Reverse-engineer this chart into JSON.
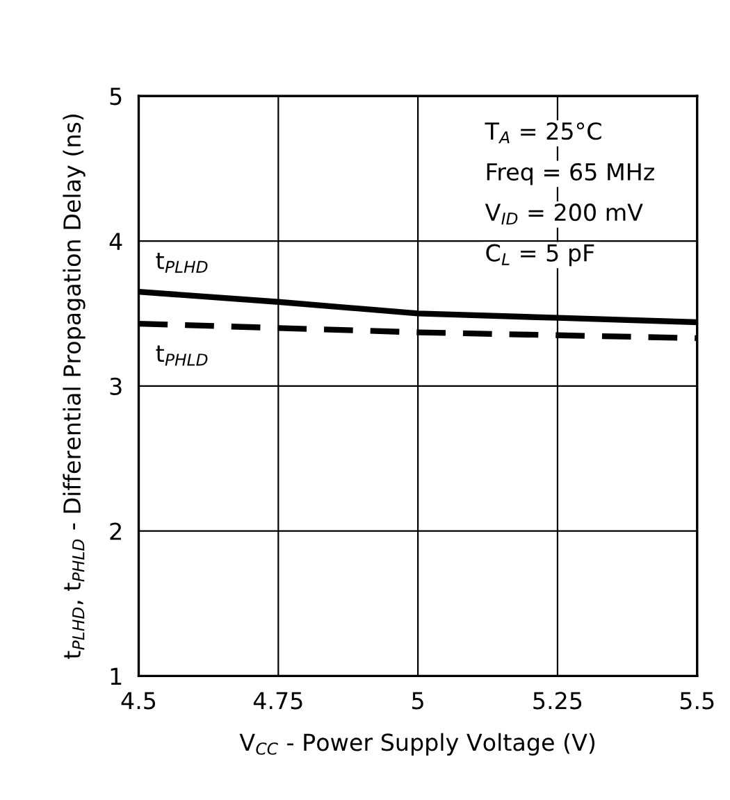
{
  "chart_data": {
    "type": "line",
    "xlabel": "V$_{CC}$ - Power Supply Voltage (V)",
    "ylabel": "t$_{PLHD}$, t$_{PHLD}$ - Differential Propagation Delay (ns)",
    "x": [
      4.5,
      4.75,
      5,
      5.25,
      5.5
    ],
    "series": [
      {
        "name": "t$_{PLHD}$",
        "color": "#000000",
        "line_style": "solid",
        "values": [
          3.65,
          3.58,
          3.5,
          3.47,
          3.44
        ]
      },
      {
        "name": "t$_{PHLD}$",
        "color": "#000000",
        "line_style": "dashed",
        "values": [
          3.43,
          3.4,
          3.37,
          3.35,
          3.33
        ]
      }
    ],
    "xlim": [
      4.5,
      5.5
    ],
    "xticks": [
      4.5,
      4.75,
      5,
      5.25,
      5.5
    ],
    "ylim": [
      1,
      5
    ],
    "yticks": [
      1,
      2,
      3,
      4,
      5
    ],
    "grid": true,
    "legend": false,
    "marker": "none",
    "annotations": [
      "T$_{A}$ = 25°C",
      "Freq = 65 MHz",
      "V$_{ID}$ = 200 mV",
      "C$_{L}$ = 5 pF"
    ]
  }
}
